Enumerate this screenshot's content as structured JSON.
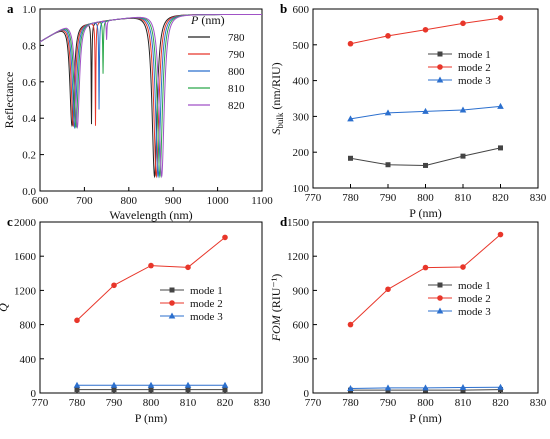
{
  "chart_data": [
    {
      "panel_label": "a",
      "type": "line",
      "xlabel": "Wavelength (nm)",
      "ylabel": "Reflectance",
      "xlim": [
        600,
        1100
      ],
      "ylim": [
        0.0,
        1.0
      ],
      "xticks": [
        "600",
        "700",
        "800",
        "900",
        "1000",
        "1100"
      ],
      "yticks": [
        "0.0",
        "0.2",
        "0.4",
        "0.6",
        "0.8",
        "1.0"
      ],
      "legend_title": "P (nm)",
      "legend_title_italic": "P",
      "legend_title_rest": " (nm)",
      "legend_position": "top-right",
      "series": [
        {
          "name": "780",
          "color": "#222222",
          "dip1_center": 672,
          "dip1_min": 0.36,
          "dip2_center": 716,
          "dip2_min": 0.36,
          "dip3_center": 858,
          "dip3_min": 0.08
        },
        {
          "name": "790",
          "color": "#e8362a",
          "dip1_center": 675,
          "dip1_min": 0.36,
          "dip2_center": 725,
          "dip2_min": 0.35,
          "dip3_center": 862,
          "dip3_min": 0.08
        },
        {
          "name": "800",
          "color": "#2b6fce",
          "dip1_center": 678,
          "dip1_min": 0.35,
          "dip2_center": 733,
          "dip2_min": 0.44,
          "dip3_center": 866,
          "dip3_min": 0.08
        },
        {
          "name": "810",
          "color": "#2aa84a",
          "dip1_center": 681,
          "dip1_min": 0.35,
          "dip2_center": 742,
          "dip2_min": 0.64,
          "dip3_center": 870,
          "dip3_min": 0.08
        },
        {
          "name": "820",
          "color": "#a052c6",
          "dip1_center": 684,
          "dip1_min": 0.35,
          "dip2_center": 750,
          "dip2_min": 0.83,
          "dip3_center": 874,
          "dip3_min": 0.08
        }
      ]
    },
    {
      "panel_label": "b",
      "type": "line",
      "xlabel": "P (nm)",
      "ylabel": "S_bulk (nm/RIU)",
      "ylabel_main": "S",
      "ylabel_sub": "bulk",
      "ylabel_rest": " (nm/RIU)",
      "xlim": [
        770,
        830
      ],
      "ylim": [
        100,
        600
      ],
      "xticks": [
        "770",
        "780",
        "790",
        "800",
        "810",
        "820",
        "830"
      ],
      "yticks": [
        "100",
        "200",
        "300",
        "400",
        "500",
        "600"
      ],
      "x": [
        780,
        790,
        800,
        810,
        820
      ],
      "legend_position": "center-right",
      "series": [
        {
          "name": "mode 1",
          "color": "#444444",
          "marker": "square",
          "values": [
            183,
            165,
            163,
            189,
            212
          ]
        },
        {
          "name": "mode 2",
          "color": "#e8362a",
          "marker": "circle",
          "values": [
            503,
            525,
            542,
            560,
            575
          ]
        },
        {
          "name": "mode 3",
          "color": "#2b6fce",
          "marker": "triangle",
          "values": [
            293,
            310,
            314,
            318,
            328
          ]
        }
      ]
    },
    {
      "panel_label": "c",
      "type": "line",
      "xlabel": "P (nm)",
      "ylabel": "Q",
      "xlim": [
        770,
        830
      ],
      "ylim": [
        0,
        2000
      ],
      "xticks": [
        "770",
        "780",
        "790",
        "800",
        "810",
        "820",
        "830"
      ],
      "yticks": [
        "0",
        "400",
        "800",
        "1200",
        "1600",
        "2000"
      ],
      "x": [
        780,
        790,
        800,
        810,
        820
      ],
      "legend_position": "center-right",
      "series": [
        {
          "name": "mode 1",
          "color": "#444444",
          "marker": "square",
          "values": [
            40,
            40,
            40,
            40,
            40
          ]
        },
        {
          "name": "mode 2",
          "color": "#e8362a",
          "marker": "circle",
          "values": [
            850,
            1260,
            1490,
            1470,
            1820
          ]
        },
        {
          "name": "mode 3",
          "color": "#2b6fce",
          "marker": "triangle",
          "values": [
            90,
            90,
            90,
            90,
            90
          ]
        }
      ]
    },
    {
      "panel_label": "d",
      "type": "line",
      "xlabel": "P (nm)",
      "ylabel": "FOM (RIU⁻¹)",
      "ylabel_main": "FOM",
      "ylabel_rest": " (RIU⁻¹)",
      "xlim": [
        770,
        830
      ],
      "ylim": [
        0,
        1500
      ],
      "xticks": [
        "770",
        "780",
        "790",
        "800",
        "810",
        "820",
        "830"
      ],
      "yticks": [
        "0",
        "300",
        "600",
        "900",
        "1200",
        "1500"
      ],
      "x": [
        780,
        790,
        800,
        810,
        820
      ],
      "legend_position": "center-right",
      "series": [
        {
          "name": "mode 1",
          "color": "#444444",
          "marker": "square",
          "values": [
            25,
            25,
            25,
            25,
            30
          ]
        },
        {
          "name": "mode 2",
          "color": "#e8362a",
          "marker": "circle",
          "values": [
            600,
            910,
            1100,
            1105,
            1390
          ]
        },
        {
          "name": "mode 3",
          "color": "#2b6fce",
          "marker": "triangle",
          "values": [
            40,
            45,
            45,
            48,
            50
          ]
        }
      ]
    }
  ]
}
